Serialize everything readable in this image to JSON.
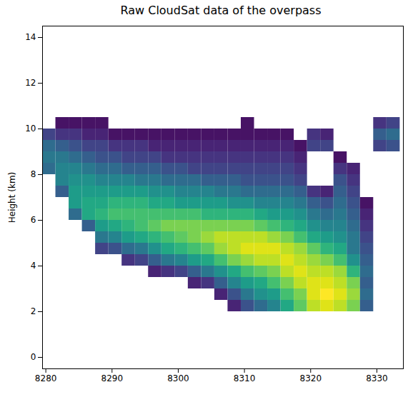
{
  "chart_data": {
    "type": "heatmap",
    "title": "Raw CloudSat data of the overpass",
    "y_label": "Height (km)",
    "xlim": [
      8279.5,
      8334
    ],
    "ylim": [
      -0.5,
      14.5
    ],
    "xticks": [
      8280,
      8290,
      8300,
      8310,
      8320,
      8330
    ],
    "yticks": [
      0,
      2,
      4,
      6,
      8,
      10,
      12,
      14
    ],
    "color": "viridis",
    "color_range": [
      0,
      1
    ],
    "x_edges": [
      8279.5,
      8281.5,
      8283.5,
      8285.5,
      8287.5,
      8289.5,
      8291.5,
      8293.5,
      8295.5,
      8297.5,
      8299.5,
      8301.5,
      8303.5,
      8305.5,
      8307.5,
      8309.5,
      8311.5,
      8313.5,
      8315.5,
      8317.5,
      8319.5,
      8321.5,
      8323.5,
      8325.5,
      8327.5,
      8329.5,
      8331.5,
      8333.5
    ],
    "y_edges": [
      2,
      2.5,
      3,
      3.5,
      4,
      4.5,
      5,
      5.5,
      6,
      6.5,
      7,
      7.5,
      8,
      8.5,
      9,
      9.5,
      10,
      10.5,
      11
    ],
    "cells_by_x": [
      [
        null,
        null,
        null,
        null,
        null,
        null,
        null,
        null,
        null,
        null,
        null,
        null,
        0.35,
        0.4,
        0.35,
        0.2,
        null,
        null
      ],
      [
        null,
        null,
        null,
        null,
        null,
        null,
        null,
        null,
        null,
        null,
        0.3,
        0.45,
        0.45,
        0.4,
        0.3,
        0.15,
        0.05,
        null
      ],
      [
        null,
        null,
        null,
        null,
        null,
        null,
        null,
        null,
        0.35,
        0.55,
        0.55,
        0.5,
        0.45,
        0.35,
        0.25,
        0.15,
        0.05,
        null
      ],
      [
        null,
        null,
        null,
        null,
        null,
        null,
        null,
        0.3,
        0.6,
        0.6,
        0.55,
        0.5,
        0.4,
        0.3,
        0.2,
        0.1,
        0.05,
        null
      ],
      [
        null,
        null,
        null,
        null,
        null,
        0.2,
        0.4,
        0.55,
        0.65,
        0.6,
        0.55,
        0.45,
        0.35,
        0.25,
        0.2,
        0.1,
        0.05,
        null
      ],
      [
        null,
        null,
        null,
        null,
        null,
        0.25,
        0.45,
        0.6,
        0.7,
        0.65,
        0.55,
        0.45,
        0.35,
        0.25,
        0.15,
        0.05,
        null,
        null
      ],
      [
        null,
        null,
        null,
        null,
        0.15,
        0.35,
        0.55,
        0.65,
        0.7,
        0.65,
        0.55,
        0.45,
        0.3,
        0.2,
        0.15,
        0.05,
        null,
        null
      ],
      [
        null,
        null,
        null,
        null,
        0.2,
        0.4,
        0.6,
        0.7,
        0.7,
        0.65,
        0.55,
        0.4,
        0.3,
        0.2,
        0.15,
        0.05,
        null,
        null
      ],
      [
        null,
        null,
        null,
        0.1,
        0.3,
        0.5,
        0.65,
        0.75,
        0.7,
        0.6,
        0.5,
        0.4,
        0.3,
        0.2,
        0.1,
        0.05,
        null,
        null
      ],
      [
        null,
        null,
        null,
        0.15,
        0.4,
        0.6,
        0.7,
        0.8,
        0.7,
        0.6,
        0.5,
        0.35,
        0.25,
        0.15,
        0.1,
        0.05,
        null,
        null
      ],
      [
        null,
        null,
        null,
        0.2,
        0.45,
        0.65,
        0.75,
        0.8,
        0.7,
        0.55,
        0.45,
        0.35,
        0.25,
        0.15,
        0.1,
        0.05,
        null,
        null
      ],
      [
        null,
        null,
        0.1,
        0.3,
        0.55,
        0.7,
        0.8,
        0.8,
        0.7,
        0.55,
        0.45,
        0.35,
        0.2,
        0.15,
        0.1,
        0.05,
        null,
        null
      ],
      [
        null,
        null,
        0.15,
        0.4,
        0.6,
        0.75,
        0.85,
        0.8,
        0.65,
        0.55,
        0.45,
        0.3,
        0.2,
        0.15,
        0.1,
        0.05,
        null,
        null
      ],
      [
        null,
        0.1,
        0.3,
        0.5,
        0.7,
        0.85,
        0.9,
        0.8,
        0.65,
        0.55,
        0.4,
        0.3,
        0.2,
        0.15,
        0.1,
        0.05,
        null,
        null
      ],
      [
        0.1,
        0.25,
        0.45,
        0.6,
        0.8,
        0.9,
        0.9,
        0.8,
        0.65,
        0.5,
        0.4,
        0.3,
        0.2,
        0.15,
        0.1,
        0.05,
        null,
        null
      ],
      [
        0.25,
        0.4,
        0.55,
        0.7,
        0.85,
        0.95,
        0.9,
        0.8,
        0.65,
        0.5,
        0.35,
        0.25,
        0.2,
        0.15,
        0.1,
        0.05,
        0.05,
        null
      ],
      [
        0.35,
        0.5,
        0.6,
        0.75,
        0.9,
        0.95,
        0.9,
        0.75,
        0.6,
        0.45,
        0.35,
        0.25,
        0.2,
        0.15,
        0.1,
        0.05,
        null,
        null
      ],
      [
        0.45,
        0.55,
        0.7,
        0.8,
        0.9,
        0.95,
        0.85,
        0.7,
        0.55,
        0.45,
        0.35,
        0.25,
        0.2,
        0.15,
        0.1,
        0.05,
        null,
        null
      ],
      [
        0.6,
        0.7,
        0.8,
        0.9,
        0.95,
        0.9,
        0.8,
        0.65,
        0.55,
        0.45,
        0.35,
        0.25,
        0.2,
        0.15,
        0.1,
        0.05,
        null,
        null
      ],
      [
        0.75,
        0.8,
        0.9,
        0.95,
        0.9,
        0.85,
        0.7,
        0.6,
        0.5,
        0.4,
        0.3,
        0.2,
        0.15,
        0.1,
        0.05,
        null,
        null,
        null
      ],
      [
        0.9,
        0.95,
        0.95,
        0.9,
        0.85,
        0.75,
        0.6,
        0.5,
        0.4,
        0.3,
        0.15,
        null,
        null,
        null,
        0.2,
        0.15,
        null,
        null
      ],
      [
        0.95,
        1.0,
        0.95,
        0.9,
        0.8,
        0.65,
        0.55,
        0.45,
        0.35,
        0.25,
        0.1,
        null,
        null,
        null,
        0.2,
        0.1,
        null,
        null
      ],
      [
        0.9,
        0.95,
        0.9,
        0.85,
        0.7,
        0.6,
        0.5,
        0.45,
        0.4,
        0.35,
        0.3,
        0.25,
        0.15,
        0.05,
        null,
        null,
        null,
        null
      ],
      [
        0.8,
        0.85,
        0.8,
        0.65,
        0.5,
        0.4,
        0.4,
        0.35,
        0.3,
        0.25,
        0.2,
        0.15,
        0.1,
        null,
        null,
        null,
        null,
        null
      ],
      [
        0.3,
        0.35,
        0.3,
        0.35,
        0.3,
        0.25,
        0.2,
        0.15,
        0.1,
        0.05,
        null,
        null,
        null,
        null,
        null,
        null,
        null,
        null
      ],
      [
        null,
        null,
        null,
        null,
        null,
        null,
        null,
        null,
        null,
        null,
        null,
        null,
        null,
        null,
        0.2,
        0.3,
        0.15,
        null
      ],
      [
        null,
        null,
        null,
        null,
        null,
        null,
        null,
        null,
        null,
        null,
        null,
        null,
        null,
        null,
        0.25,
        0.35,
        0.2,
        null
      ]
    ]
  }
}
